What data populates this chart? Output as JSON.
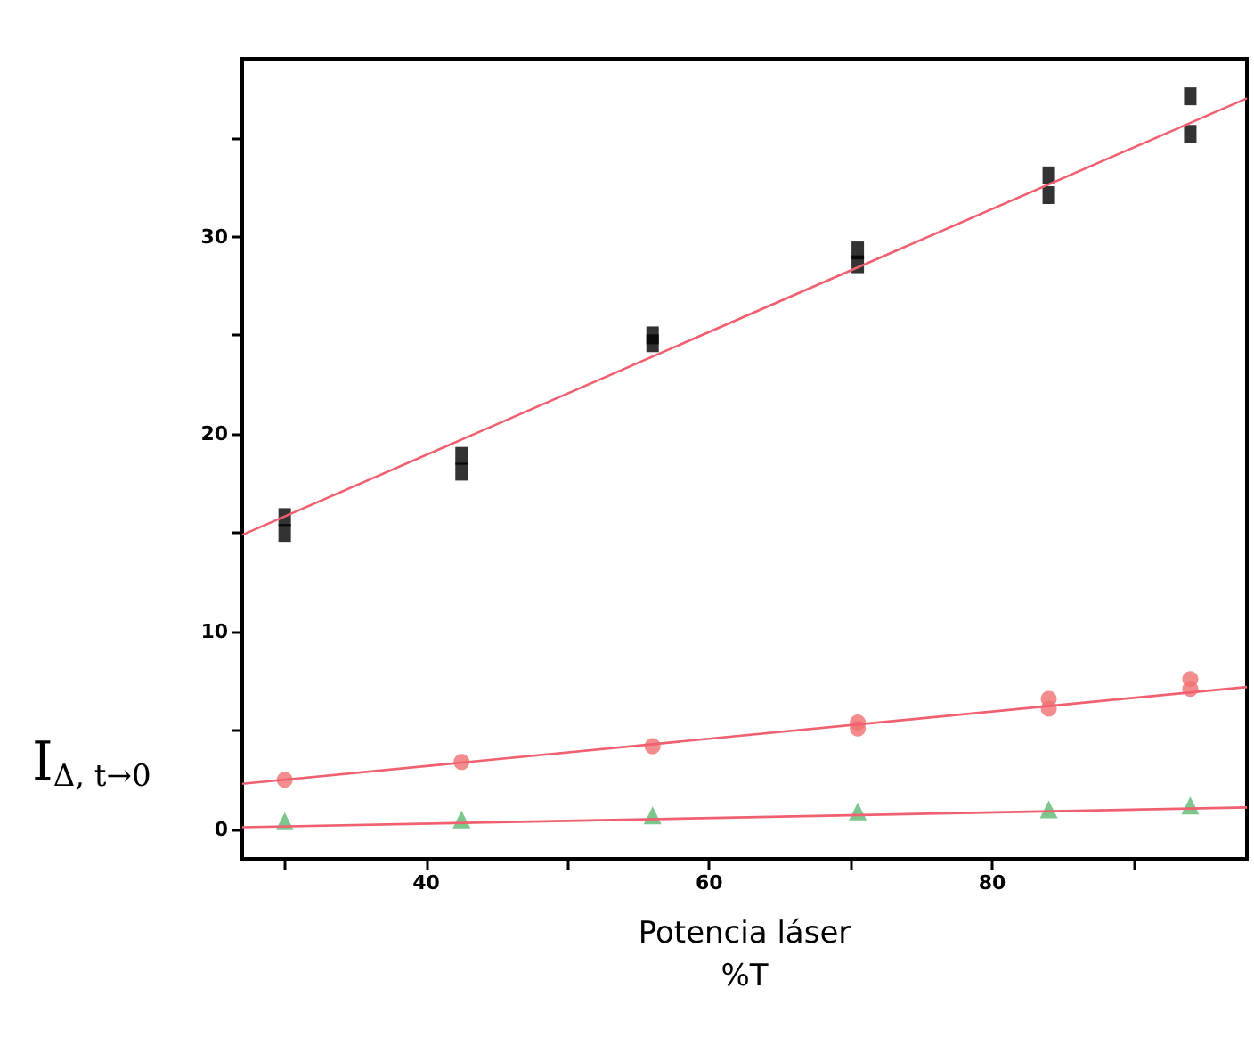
{
  "chart_data": {
    "type": "scatter",
    "xlabel": "Potencia láser\n%T",
    "ylabel": "I$_{Δ, t→0}$",
    "xlim": [
      27,
      98
    ],
    "ylim": [
      -1.5,
      39
    ],
    "xticks": [
      {
        "value": 30,
        "label": null
      },
      40,
      {
        "value": 50,
        "label": null
      },
      60,
      {
        "value": 70,
        "label": null
      },
      80,
      {
        "value": 90,
        "label": null
      }
    ],
    "yticks": [
      0,
      {
        "value": 5,
        "label": null
      },
      10,
      {
        "value": 15,
        "label": null
      },
      20,
      {
        "value": 25,
        "label": null
      },
      30,
      {
        "value": 35,
        "label": null
      }
    ],
    "grid": false,
    "series": [
      {
        "marker": "square",
        "color": "#000000",
        "x": [
          30,
          30,
          42.5,
          42.5,
          56,
          56,
          70.5,
          70.5,
          84,
          84,
          94,
          94
        ],
        "values": [
          15.8,
          15.0,
          18.9,
          18.1,
          25.0,
          24.6,
          29.3,
          28.6,
          33.1,
          32.1,
          37.1,
          35.2
        ]
      },
      {
        "marker": "circle",
        "color": "#f07070",
        "x": [
          30,
          42.5,
          56,
          70.5,
          70.5,
          84,
          84,
          94,
          94
        ],
        "values": [
          2.5,
          3.4,
          4.2,
          5.4,
          5.1,
          6.6,
          6.1,
          7.6,
          7.1
        ]
      },
      {
        "marker": "triangle",
        "color": "#5cb870",
        "x": [
          30,
          42.5,
          56,
          70.5,
          84,
          94
        ],
        "values": [
          0.4,
          0.5,
          0.7,
          0.9,
          1.0,
          1.2
        ]
      },
      {
        "type": "line",
        "marker": "none",
        "color": "#f06070",
        "x": [
          27,
          98
        ],
        "values": [
          14.9,
          37.0
        ]
      },
      {
        "type": "line",
        "marker": "none",
        "color": "#f06070",
        "x": [
          27,
          98
        ],
        "values": [
          2.3,
          7.2
        ]
      },
      {
        "type": "line",
        "marker": "none",
        "color": "#f06070",
        "x": [
          27,
          98
        ],
        "values": [
          0.1,
          1.1
        ]
      }
    ]
  }
}
